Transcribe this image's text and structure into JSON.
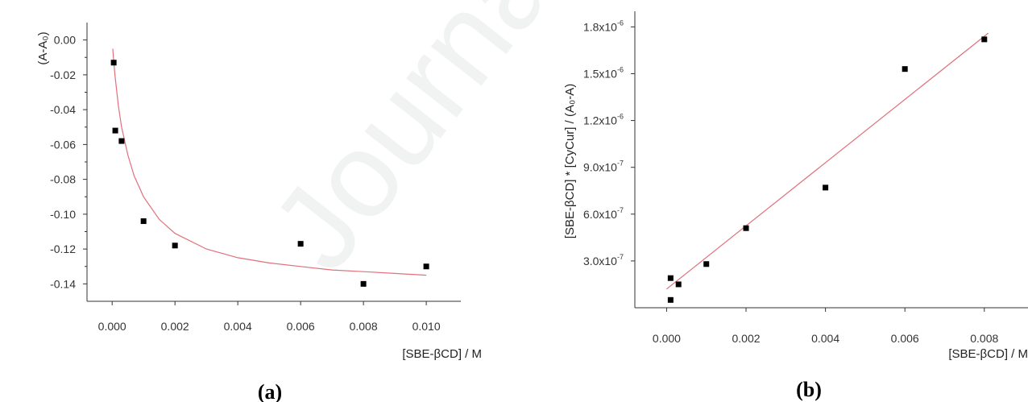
{
  "chart_data": [
    {
      "type": "scatter",
      "panel_label": "(a)",
      "xlabel": "[SBE-βCD] / M",
      "ylabel": "(A-A₀)",
      "xlim": [
        -0.0008,
        0.0111
      ],
      "ylim": [
        -0.15,
        0.01
      ],
      "xticks": [
        0.0,
        0.002,
        0.004,
        0.006,
        0.008,
        0.01
      ],
      "xtick_labels": [
        "0.000",
        "0.002",
        "0.004",
        "0.006",
        "0.008",
        "0.010"
      ],
      "yticks": [
        0.0,
        -0.02,
        -0.04,
        -0.06,
        -0.08,
        -0.1,
        -0.12,
        -0.14
      ],
      "ytick_labels": [
        "0.00",
        "-0.02",
        "-0.04",
        "-0.06",
        "-0.08",
        "-0.10",
        "-0.12",
        "-0.14"
      ],
      "grid": false,
      "series": [
        {
          "points": [
            {
              "x": 5e-05,
              "y": -0.013
            },
            {
              "x": 0.0001,
              "y": -0.052
            },
            {
              "x": 0.0003,
              "y": -0.058
            },
            {
              "x": 0.001,
              "y": -0.104
            },
            {
              "x": 0.002,
              "y": -0.118
            },
            {
              "x": 0.006,
              "y": -0.117
            },
            {
              "x": 0.008,
              "y": -0.14
            },
            {
              "x": 0.01,
              "y": -0.13
            }
          ],
          "marker": "square",
          "color": "#000000"
        },
        {
          "fit": "hyperbolic",
          "x": [
            2e-05,
            5e-05,
            0.0001,
            0.0002,
            0.0003,
            0.0005,
            0.0007,
            0.001,
            0.0015,
            0.002,
            0.003,
            0.004,
            0.005,
            0.006,
            0.007,
            0.008,
            0.009,
            0.01
          ],
          "y": [
            -0.005,
            -0.012,
            -0.022,
            -0.038,
            -0.05,
            -0.066,
            -0.078,
            -0.09,
            -0.103,
            -0.111,
            -0.12,
            -0.125,
            -0.128,
            -0.13,
            -0.132,
            -0.133,
            -0.134,
            -0.135
          ],
          "color": "#e0707a"
        }
      ]
    },
    {
      "type": "scatter",
      "panel_label": "(b)",
      "xlabel": "[SBE-βCD] / M",
      "ylabel": "[SBE-βCD] * [CyCur] / (A₀-A)",
      "xlim": [
        -0.0008,
        0.0091
      ],
      "ylim": [
        0.0,
        1.9e-06
      ],
      "xticks": [
        0.0,
        0.002,
        0.004,
        0.006,
        0.008
      ],
      "xtick_labels": [
        "0.000",
        "0.002",
        "0.004",
        "0.006",
        "0.008"
      ],
      "yticks": [
        3e-07,
        6e-07,
        9e-07,
        1.2e-06,
        1.5e-06,
        1.8e-06
      ],
      "ytick_labels": [
        {
          "mantissa": "3.0x10",
          "exp": "-7"
        },
        {
          "mantissa": "6.0x10",
          "exp": "-7"
        },
        {
          "mantissa": "9.0x10",
          "exp": "-7"
        },
        {
          "mantissa": "1.2x10",
          "exp": "-6"
        },
        {
          "mantissa": "1.5x10",
          "exp": "-6"
        },
        {
          "mantissa": "1.8x10",
          "exp": "-6"
        }
      ],
      "grid": false,
      "series": [
        {
          "points": [
            {
              "x": 0.0001,
              "y": 1.9e-07
            },
            {
              "x": 0.0001,
              "y": 5e-08
            },
            {
              "x": 0.0003,
              "y": 1.5e-07
            },
            {
              "x": 0.001,
              "y": 2.8e-07
            },
            {
              "x": 0.002,
              "y": 5.1e-07
            },
            {
              "x": 0.004,
              "y": 7.7e-07
            },
            {
              "x": 0.006,
              "y": 1.53e-06
            },
            {
              "x": 0.008,
              "y": 1.72e-06
            }
          ],
          "marker": "square",
          "color": "#000000"
        },
        {
          "fit": "linear",
          "x": [
            0.0,
            0.0081
          ],
          "y": [
            1.2e-07,
            1.76e-06
          ],
          "color": "#e0707a"
        }
      ]
    }
  ]
}
